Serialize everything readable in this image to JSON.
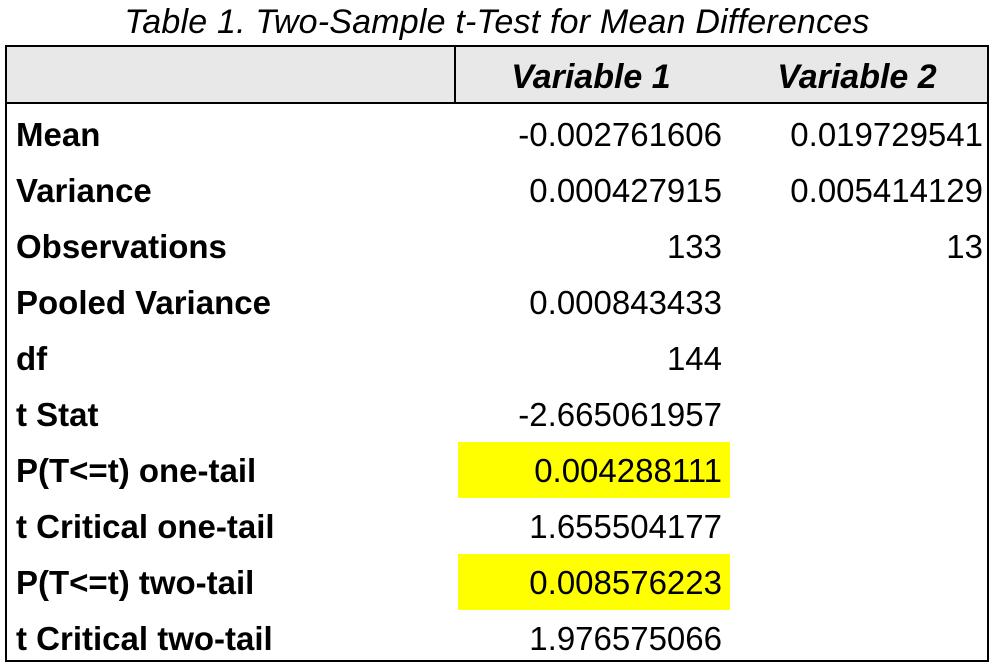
{
  "caption": "Table 1. Two-Sample t-Test for Mean Differences",
  "columns": {
    "label": "",
    "variable_1": "Variable 1",
    "variable_2": "Variable 2"
  },
  "rows": [
    {
      "label": "Mean",
      "v1": "-0.002761606",
      "v2": "0.019729541",
      "highlight": false
    },
    {
      "label": "Variance",
      "v1": "0.000427915",
      "v2": "0.005414129",
      "highlight": false
    },
    {
      "label": "Observations",
      "v1": "133",
      "v2": "13",
      "highlight": false
    },
    {
      "label": "Pooled Variance",
      "v1": "0.000843433",
      "v2": "",
      "highlight": false
    },
    {
      "label": "df",
      "v1": "144",
      "v2": "",
      "highlight": false
    },
    {
      "label": "t Stat",
      "v1": "-2.665061957",
      "v2": "",
      "highlight": false
    },
    {
      "label": "P(T<=t) one-tail",
      "v1": "0.004288111",
      "v2": "",
      "highlight": true
    },
    {
      "label": "t Critical one-tail",
      "v1": "1.655504177",
      "v2": "",
      "highlight": false
    },
    {
      "label": "P(T<=t) two-tail",
      "v1": "0.008576223",
      "v2": "",
      "highlight": true
    },
    {
      "label": "t Critical two-tail",
      "v1": "1.976575066",
      "v2": "",
      "highlight": false
    }
  ],
  "colors": {
    "highlight": "#ffff00",
    "header_background": "#e8e8e8"
  }
}
